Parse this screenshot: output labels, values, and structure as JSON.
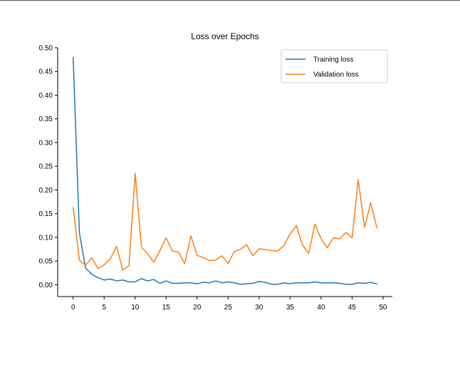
{
  "chart_data": {
    "type": "line",
    "title": "Loss over Epochs",
    "xlabel": "",
    "ylabel": "",
    "xlim": [
      -2.5,
      51.5
    ],
    "ylim": [
      -0.025,
      0.5
    ],
    "xticks": [
      "0",
      "5",
      "10",
      "15",
      "20",
      "25",
      "30",
      "35",
      "40",
      "45",
      "50"
    ],
    "yticks": [
      "0.00",
      "0.05",
      "0.10",
      "0.15",
      "0.20",
      "0.25",
      "0.30",
      "0.35",
      "0.40",
      "0.45",
      "0.50"
    ],
    "grid": false,
    "legend": "top-right",
    "x": [
      0,
      1,
      2,
      3,
      4,
      5,
      6,
      7,
      8,
      9,
      10,
      11,
      12,
      13,
      14,
      15,
      16,
      17,
      18,
      19,
      20,
      21,
      22,
      23,
      24,
      25,
      26,
      27,
      28,
      29,
      30,
      31,
      32,
      33,
      34,
      35,
      36,
      37,
      38,
      39,
      40,
      41,
      42,
      43,
      44,
      45,
      46,
      47,
      48,
      49
    ],
    "series": [
      {
        "name": "Training loss",
        "color": "#1f77b4",
        "values": [
          0.48,
          0.11,
          0.035,
          0.022,
          0.015,
          0.01,
          0.012,
          0.008,
          0.01,
          0.006,
          0.006,
          0.013,
          0.008,
          0.011,
          0.003,
          0.008,
          0.003,
          0.003,
          0.004,
          0.004,
          0.002,
          0.005,
          0.004,
          0.008,
          0.004,
          0.006,
          0.004,
          0.001,
          0.002,
          0.003,
          0.007,
          0.005,
          0.001,
          0.001,
          0.004,
          0.002,
          0.004,
          0.004,
          0.004,
          0.006,
          0.004,
          0.004,
          0.004,
          0.003,
          0.001,
          0.001,
          0.004,
          0.003,
          0.005,
          0.002
        ]
      },
      {
        "name": "Validation loss",
        "color": "#ff7f0e",
        "values": [
          0.163,
          0.052,
          0.041,
          0.057,
          0.034,
          0.042,
          0.055,
          0.081,
          0.031,
          0.04,
          0.235,
          0.08,
          0.066,
          0.047,
          0.072,
          0.099,
          0.071,
          0.069,
          0.044,
          0.103,
          0.062,
          0.057,
          0.051,
          0.052,
          0.061,
          0.045,
          0.07,
          0.075,
          0.084,
          0.061,
          0.076,
          0.074,
          0.072,
          0.071,
          0.083,
          0.107,
          0.125,
          0.084,
          0.066,
          0.128,
          0.097,
          0.078,
          0.099,
          0.097,
          0.11,
          0.099,
          0.222,
          0.121,
          0.173,
          0.12
        ]
      }
    ]
  }
}
